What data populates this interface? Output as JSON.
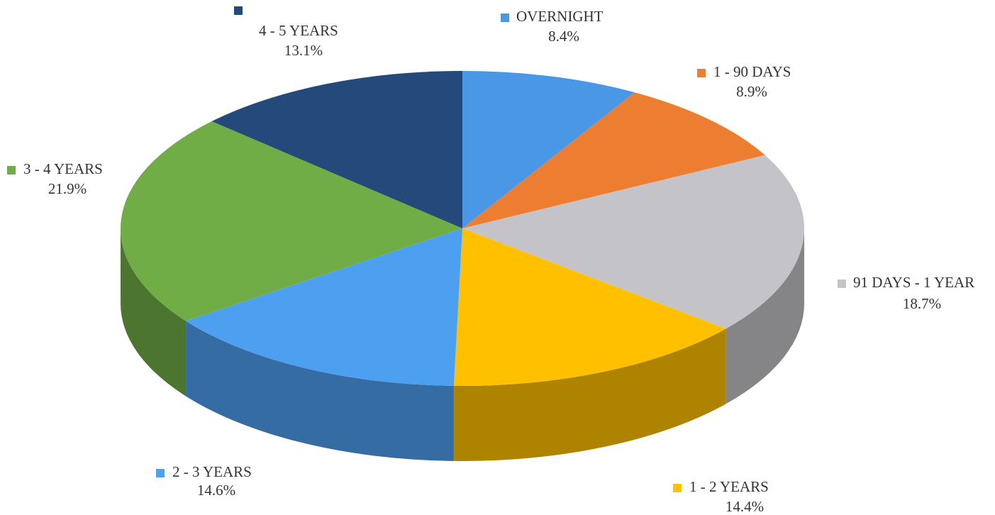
{
  "chart_data": {
    "type": "pie",
    "categories": [
      "OVERNIGHT",
      "1 - 90 DAYS",
      "91 DAYS - 1 YEAR",
      "1 - 2 YEARS",
      "2 - 3 YEARS",
      "3 - 4 YEARS",
      "4 - 5 YEARS"
    ],
    "values": [
      8.4,
      8.9,
      18.7,
      14.4,
      14.6,
      21.9,
      13.1
    ],
    "value_labels": [
      "8.4%",
      "8.9%",
      "18.7%",
      "14.4%",
      "14.6%",
      "21.9%",
      "13.1%"
    ],
    "colors": [
      "#4a97e6",
      "#ed7d31",
      "#c4c4c8",
      "#ffc000",
      "#4d9ff0",
      "#70ad47",
      "#244a7c"
    ]
  }
}
